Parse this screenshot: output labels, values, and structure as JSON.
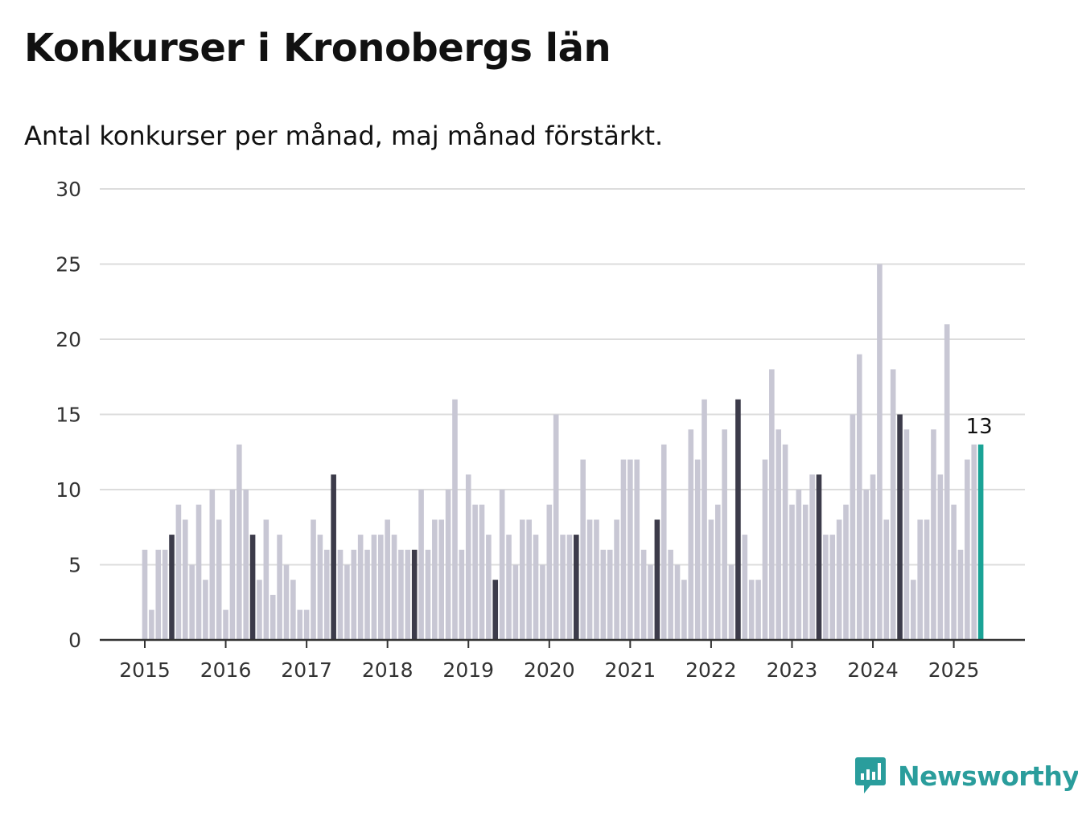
{
  "title": "Konkurser i Kronobergs län",
  "subtitle": "Antal konkurser per månad, maj månad förstärkt.",
  "brand": {
    "name": "Newsworthy",
    "icon": "newsworthy-logo-icon"
  },
  "colors": {
    "bar": "#c8c7d4",
    "highlight": "#3c3b4a",
    "current": "#1aa396",
    "grid": "#dcdcdc",
    "axis": "#333333"
  },
  "chart_data": {
    "type": "bar",
    "title": "Konkurser i Kronobergs län",
    "subtitle": "Antal konkurser per månad, maj månad förstärkt.",
    "ylim": [
      0,
      30
    ],
    "yticks": [
      0,
      5,
      10,
      15,
      20,
      25,
      30
    ],
    "xticks": [
      "2015",
      "2016",
      "2017",
      "2018",
      "2019",
      "2020",
      "2021",
      "2022",
      "2023",
      "2024",
      "2025"
    ],
    "grid": true,
    "start": "2015-01",
    "end": "2025-05",
    "highlight_month": "maj",
    "last_value_label": "13",
    "values": [
      6,
      2,
      6,
      6,
      7,
      9,
      8,
      5,
      9,
      4,
      10,
      8,
      2,
      10,
      13,
      10,
      7,
      4,
      8,
      3,
      7,
      5,
      4,
      2,
      2,
      8,
      7,
      6,
      11,
      6,
      5,
      6,
      7,
      6,
      7,
      7,
      8,
      7,
      6,
      6,
      6,
      10,
      6,
      8,
      8,
      10,
      16,
      6,
      11,
      9,
      9,
      7,
      4,
      10,
      7,
      5,
      8,
      8,
      7,
      5,
      9,
      15,
      7,
      7,
      7,
      12,
      8,
      8,
      6,
      6,
      8,
      12,
      12,
      12,
      6,
      5,
      8,
      13,
      6,
      5,
      4,
      14,
      12,
      16,
      8,
      9,
      14,
      5,
      16,
      7,
      4,
      4,
      12,
      18,
      14,
      13,
      9,
      10,
      9,
      11,
      11,
      7,
      7,
      8,
      9,
      15,
      19,
      10,
      11,
      25,
      8,
      18,
      15,
      14,
      4,
      8,
      8,
      14,
      11,
      21,
      9,
      6,
      12,
      13,
      13
    ]
  }
}
